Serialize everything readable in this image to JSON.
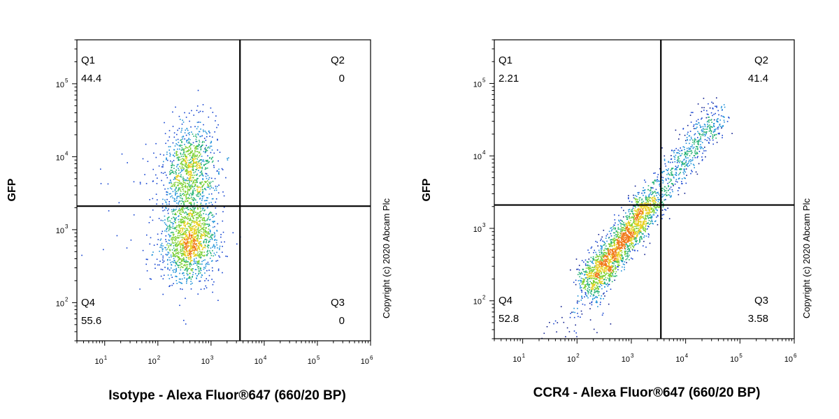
{
  "chart_data": [
    {
      "type": "scatter",
      "xlabel": "Isotype - Alexa Fluor®647 (660/20 BP)",
      "ylabel": "GFP",
      "xscale": "log",
      "yscale": "log",
      "xlim": [
        3,
        1000000
      ],
      "ylim": [
        30,
        400000
      ],
      "x_ticks": [
        {
          "base": "10",
          "exp": "1"
        },
        {
          "base": "10",
          "exp": "2"
        },
        {
          "base": "10",
          "exp": "3"
        },
        {
          "base": "10",
          "exp": "4"
        },
        {
          "base": "10",
          "exp": "5"
        },
        {
          "base": "10",
          "exp": "6"
        }
      ],
      "y_ticks": [
        {
          "base": "10",
          "exp": "2"
        },
        {
          "base": "10",
          "exp": "3"
        },
        {
          "base": "10",
          "exp": "4"
        },
        {
          "base": "10",
          "exp": "5"
        }
      ],
      "gate": {
        "x": 3500,
        "y": 2100
      },
      "quadrants": [
        {
          "name": "Q1",
          "value": "44.4"
        },
        {
          "name": "Q2",
          "value": "0"
        },
        {
          "name": "Q3",
          "value": "0"
        },
        {
          "name": "Q4",
          "value": "55.6"
        }
      ],
      "populations": [
        {
          "x_center": 400,
          "y_center": 700,
          "x_spread_decades": 0.25,
          "y_spread_decades": 0.28,
          "fraction": 0.556
        },
        {
          "x_center": 400,
          "y_center": 6000,
          "x_spread_decades": 0.25,
          "y_spread_decades": 0.35,
          "fraction": 0.444
        }
      ],
      "copyright": "Copyright (c) 2020 Abcam Plc"
    },
    {
      "type": "scatter",
      "xlabel": "CCR4 - Alexa Fluor®647 (660/20 BP)",
      "ylabel": "GFP",
      "xscale": "log",
      "yscale": "log",
      "xlim": [
        3,
        1000000
      ],
      "ylim": [
        30,
        400000
      ],
      "x_ticks": [
        {
          "base": "10",
          "exp": "1"
        },
        {
          "base": "10",
          "exp": "2"
        },
        {
          "base": "10",
          "exp": "3"
        },
        {
          "base": "10",
          "exp": "4"
        },
        {
          "base": "10",
          "exp": "5"
        },
        {
          "base": "10",
          "exp": "6"
        }
      ],
      "y_ticks": [
        {
          "base": "10",
          "exp": "2"
        },
        {
          "base": "10",
          "exp": "3"
        },
        {
          "base": "10",
          "exp": "4"
        },
        {
          "base": "10",
          "exp": "5"
        }
      ],
      "gate": {
        "x": 3500,
        "y": 2100
      },
      "quadrants": [
        {
          "name": "Q1",
          "value": "2.21"
        },
        {
          "name": "Q2",
          "value": "41.4"
        },
        {
          "name": "Q3",
          "value": "3.58"
        },
        {
          "name": "Q4",
          "value": "52.8"
        }
      ],
      "populations": [
        {
          "diagonal": true,
          "x_from": 150,
          "x_to": 40000,
          "y_from": 150,
          "y_to": 40000,
          "perp_spread_decades": 0.12
        }
      ],
      "copyright": "Copyright (c) 2020 Abcam Plc"
    }
  ]
}
